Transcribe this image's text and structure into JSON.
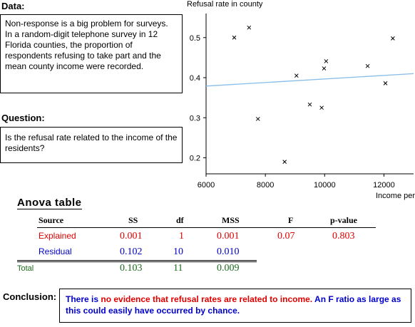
{
  "data_section": {
    "heading": "Data:",
    "text": "Non-response is a big problem for surveys. In a random-digit telephone survey in 12 Florida counties, the proportion of respondents refusing to take part and the mean county income were recorded."
  },
  "question_section": {
    "heading": "Question:",
    "text": "Is the refusal rate related to the income of the residents?"
  },
  "chart_data": {
    "type": "scatter",
    "ylabel": "Refusal rate in county",
    "xlabel": "Income per capita",
    "xlim": [
      6000,
      13000
    ],
    "ylim": [
      0.16,
      0.56
    ],
    "xticks": [
      6000,
      8000,
      10000,
      12000
    ],
    "yticks": [
      0.2,
      0.3,
      0.4,
      0.5
    ],
    "points": [
      {
        "x": 6950,
        "y": 0.5
      },
      {
        "x": 7450,
        "y": 0.525
      },
      {
        "x": 7750,
        "y": 0.297
      },
      {
        "x": 8650,
        "y": 0.19
      },
      {
        "x": 9050,
        "y": 0.405
      },
      {
        "x": 9500,
        "y": 0.333
      },
      {
        "x": 9900,
        "y": 0.325
      },
      {
        "x": 9980,
        "y": 0.423
      },
      {
        "x": 10050,
        "y": 0.441
      },
      {
        "x": 11450,
        "y": 0.429
      },
      {
        "x": 12050,
        "y": 0.386
      },
      {
        "x": 12300,
        "y": 0.498
      }
    ],
    "fit_line": {
      "x": [
        6000,
        13000
      ],
      "y": [
        0.379,
        0.41
      ],
      "color": "#87bde8"
    },
    "grid": false
  },
  "anova": {
    "title": "Anova table",
    "headers": [
      "Source",
      "SS",
      "df",
      "MSS",
      "F",
      "p-value"
    ],
    "explained": {
      "label": "Explained",
      "ss": "0.001",
      "df": "1",
      "mss": "0.001",
      "f": "0.07",
      "p": "0.803"
    },
    "residual": {
      "label": "Residual",
      "ss": "0.102",
      "df": "10",
      "mss": "0.010"
    },
    "total": {
      "label": "Total",
      "ss": "0.103",
      "df": "11",
      "mss": "0.009"
    }
  },
  "conclusion": {
    "heading": "Conclusion:",
    "part1": "There is ",
    "part2": "no evidence that refusal rates are related to income.",
    "part3": " An F ratio as large as this could easily have occurred by chance."
  },
  "colors": {
    "explained": "#e00000",
    "residual": "#0000cc",
    "total": "#1a6b1a",
    "fit_line": "#87bde8"
  }
}
